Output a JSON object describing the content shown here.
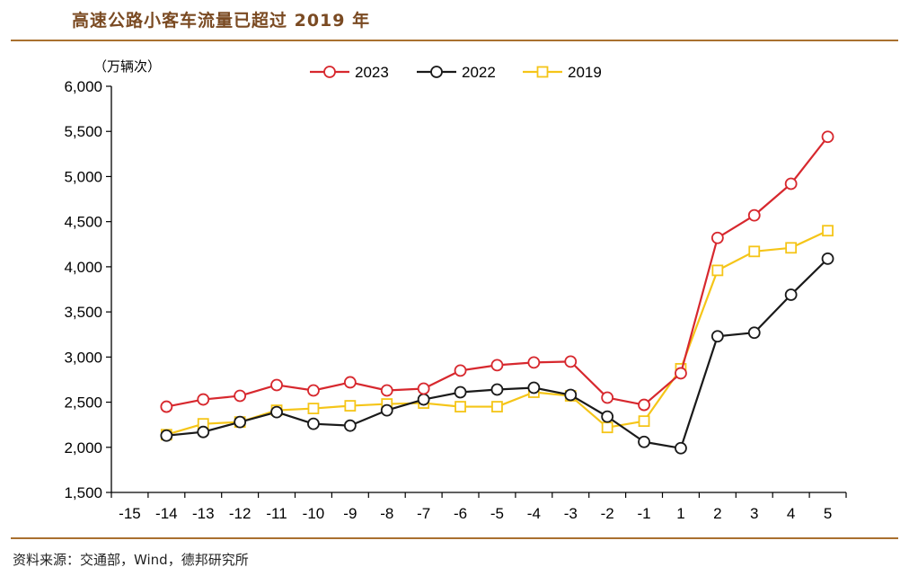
{
  "header": {
    "title": "高速公路小客车流量已超过 2019 年"
  },
  "footer": {
    "source": "资料来源：交通部，Wind，德邦研究所"
  },
  "colors": {
    "rule": "#a9702f",
    "title": "#7a4a22",
    "series_2023": "#d7282e",
    "series_2022": "#1a1a1a",
    "series_2019": "#f5c518"
  },
  "chart_data": {
    "type": "line",
    "unit_label": "（万辆次）",
    "x": [
      -14,
      -13,
      -12,
      -11,
      -10,
      -9,
      -8,
      -7,
      -6,
      -5,
      -4,
      -3,
      -2,
      -1,
      1,
      2,
      3,
      4,
      5
    ],
    "x_tick_labels": [
      "-15",
      "-14",
      "-13",
      "-12",
      "-11",
      "-10",
      "-9",
      "-8",
      "-7",
      "-6",
      "-5",
      "-4",
      "-3",
      "-2",
      "-1",
      "1",
      "2",
      "3",
      "4",
      "5"
    ],
    "y_tick_labels": [
      "1,500",
      "2,000",
      "2,500",
      "3,000",
      "3,500",
      "4,000",
      "4,500",
      "5,000",
      "5,500",
      "6,000"
    ],
    "ylim": [
      1500,
      6000
    ],
    "y_ticks": [
      1500,
      2000,
      2500,
      3000,
      3500,
      4000,
      4500,
      5000,
      5500,
      6000
    ],
    "grid": false,
    "legend_position": "top-center",
    "series": [
      {
        "name": "2023",
        "marker": "circle",
        "color": "#d7282e",
        "values": [
          2450,
          2530,
          2570,
          2690,
          2630,
          2720,
          2630,
          2650,
          2850,
          2910,
          2940,
          2950,
          2550,
          2470,
          2820,
          4320,
          4570,
          4920,
          5440
        ]
      },
      {
        "name": "2022",
        "marker": "circle",
        "color": "#1a1a1a",
        "values": [
          2130,
          2170,
          2280,
          2390,
          2260,
          2240,
          2410,
          2530,
          2610,
          2640,
          2660,
          2580,
          2340,
          2060,
          1990,
          3230,
          3270,
          3690,
          4090
        ]
      },
      {
        "name": "2019",
        "marker": "square",
        "color": "#f5c518",
        "values": [
          2140,
          2260,
          2280,
          2410,
          2430,
          2460,
          2480,
          2490,
          2450,
          2450,
          2610,
          2570,
          2220,
          2290,
          2870,
          3960,
          4170,
          4210,
          4400
        ]
      }
    ]
  }
}
